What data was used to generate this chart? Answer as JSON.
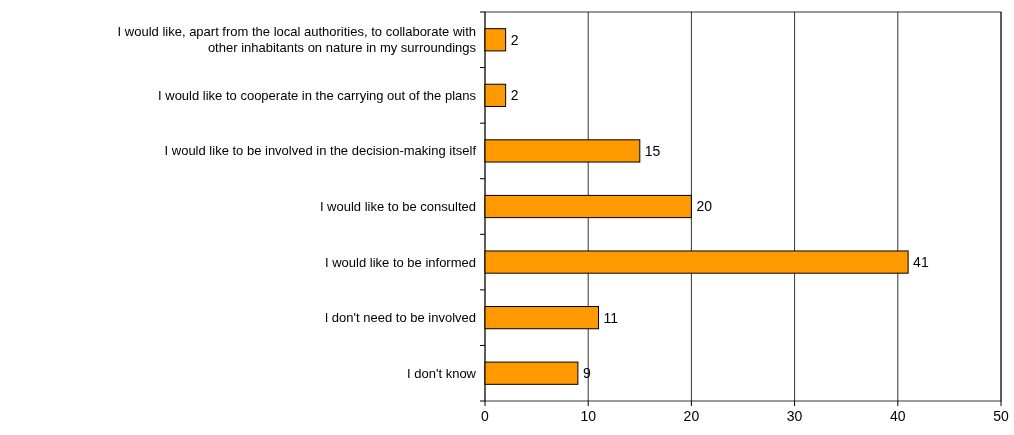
{
  "chart_data": {
    "type": "bar",
    "orientation": "horizontal",
    "categories": [
      "I would like, apart from the local authorities, to collaborate with other inhabitants on nature in my surroundings",
      "I would like to cooperate in the carrying out of the plans",
      "I would like to be involved in the decision-making itself",
      "I would like to be consulted",
      "I would like to be informed",
      "I don't need to be involved",
      "I don't know"
    ],
    "values": [
      2,
      2,
      15,
      20,
      41,
      11,
      9
    ],
    "color": "#ff9900",
    "xlim": [
      0,
      50
    ],
    "xticks": [
      0,
      10,
      20,
      30,
      40,
      50
    ],
    "grid": "x",
    "data_labels": true
  }
}
